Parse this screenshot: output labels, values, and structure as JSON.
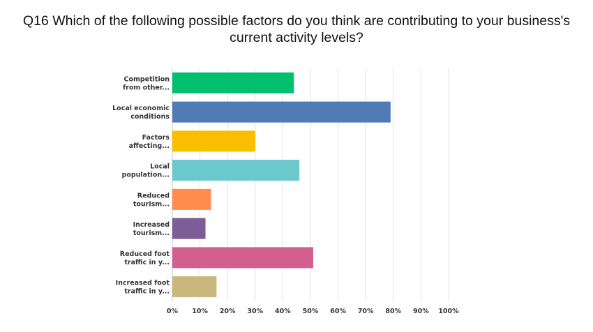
{
  "title_lines": [
    "Q16 Which of the following possible factors do you think are contributing to your business's",
    "current activity levels?"
  ],
  "chart_data": {
    "type": "bar",
    "orientation": "horizontal",
    "title": "Q16 Which of the following possible factors do you think are contributing to your business's current activity levels?",
    "categories": [
      [
        "Competition",
        "from other..."
      ],
      [
        "Local economic",
        "conditions"
      ],
      [
        "Factors",
        "affecting..."
      ],
      [
        "Local",
        "population..."
      ],
      [
        "Reduced",
        "tourism..."
      ],
      [
        "Increased",
        "tourism..."
      ],
      [
        "Reduced foot",
        "traffic in y..."
      ],
      [
        "Increased foot",
        "traffic in y..."
      ]
    ],
    "values": [
      44,
      79,
      30,
      46,
      14,
      12,
      51,
      16
    ],
    "colors": [
      "#00bf6f",
      "#507cb6",
      "#f9be00",
      "#6bc8cd",
      "#ff8b4f",
      "#7d5d96",
      "#d25f90",
      "#c9b77b"
    ],
    "xlim": [
      0,
      100
    ],
    "ticks": [
      "0%",
      "10%",
      "20%",
      "30%",
      "40%",
      "50%",
      "60%",
      "70%",
      "80%",
      "90%",
      "100%"
    ],
    "grid": true
  }
}
